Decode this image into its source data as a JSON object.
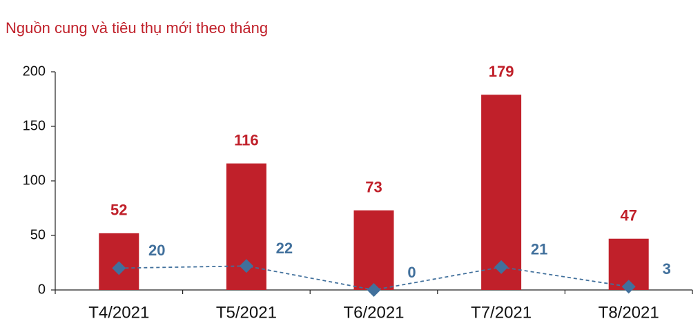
{
  "chart_data": {
    "type": "bar",
    "title": "Nguồn cung và tiêu thụ mới theo tháng",
    "categories": [
      "T4/2021",
      "T5/2021",
      "T6/2021",
      "T7/2021",
      "T8/2021"
    ],
    "series": [
      {
        "type": "bar",
        "color": "#c0202a",
        "values": [
          52,
          116,
          73,
          179,
          47
        ]
      },
      {
        "type": "line",
        "color": "#41709c",
        "values": [
          20,
          22,
          0,
          21,
          3
        ]
      }
    ],
    "ylim": [
      0,
      200
    ],
    "yticks": [
      0,
      50,
      100,
      150,
      200
    ],
    "grid": false
  }
}
